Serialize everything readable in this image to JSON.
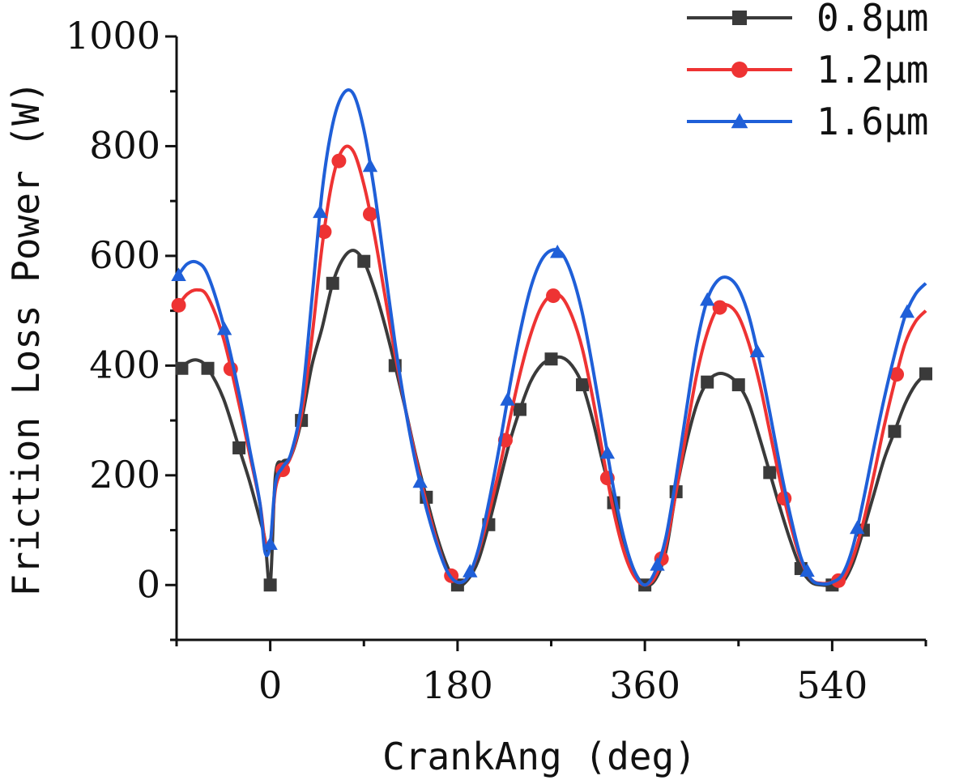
{
  "chart_data": {
    "type": "line",
    "xlabel": "CrankAng (deg)",
    "ylabel": "Friction Loss Power (W)",
    "xlim": [
      -90,
      630
    ],
    "ylim": [
      -100,
      1000
    ],
    "x_ticks": [
      0,
      180,
      360,
      540
    ],
    "y_ticks": [
      0,
      200,
      400,
      600,
      800,
      1000
    ],
    "grid": false,
    "legend_position": "top-right",
    "series": [
      {
        "name": "0.8μm",
        "color": "#3a3a3a",
        "marker": "square",
        "points": [
          [
            -90,
            385
          ],
          [
            -80,
            405
          ],
          [
            -70,
            410
          ],
          [
            -60,
            395
          ],
          [
            -45,
            340
          ],
          [
            -30,
            250
          ],
          [
            -20,
            190
          ],
          [
            -10,
            120
          ],
          [
            -5,
            82
          ],
          [
            0,
            0
          ],
          [
            5,
            200
          ],
          [
            12,
            225
          ],
          [
            20,
            235
          ],
          [
            30,
            300
          ],
          [
            40,
            400
          ],
          [
            50,
            470
          ],
          [
            60,
            550
          ],
          [
            70,
            595
          ],
          [
            80,
            610
          ],
          [
            90,
            590
          ],
          [
            100,
            540
          ],
          [
            110,
            475
          ],
          [
            120,
            400
          ],
          [
            130,
            320
          ],
          [
            140,
            235
          ],
          [
            150,
            160
          ],
          [
            160,
            90
          ],
          [
            170,
            35
          ],
          [
            180,
            0
          ],
          [
            190,
            10
          ],
          [
            200,
            45
          ],
          [
            210,
            110
          ],
          [
            220,
            185
          ],
          [
            230,
            260
          ],
          [
            240,
            320
          ],
          [
            250,
            370
          ],
          [
            260,
            400
          ],
          [
            270,
            412
          ],
          [
            280,
            415
          ],
          [
            290,
            400
          ],
          [
            300,
            365
          ],
          [
            310,
            300
          ],
          [
            320,
            220
          ],
          [
            330,
            150
          ],
          [
            340,
            80
          ],
          [
            350,
            25
          ],
          [
            360,
            0
          ],
          [
            370,
            10
          ],
          [
            380,
            60
          ],
          [
            390,
            170
          ],
          [
            400,
            260
          ],
          [
            410,
            330
          ],
          [
            420,
            370
          ],
          [
            430,
            385
          ],
          [
            440,
            382
          ],
          [
            450,
            365
          ],
          [
            460,
            330
          ],
          [
            470,
            270
          ],
          [
            480,
            205
          ],
          [
            490,
            140
          ],
          [
            500,
            80
          ],
          [
            510,
            30
          ],
          [
            520,
            5
          ],
          [
            530,
            0
          ],
          [
            540,
            0
          ],
          [
            550,
            5
          ],
          [
            560,
            40
          ],
          [
            570,
            100
          ],
          [
            580,
            165
          ],
          [
            590,
            230
          ],
          [
            600,
            280
          ],
          [
            610,
            330
          ],
          [
            620,
            365
          ],
          [
            630,
            385
          ]
        ],
        "marker_x": [
          -85,
          -60,
          -30,
          0,
          30,
          60,
          90,
          120,
          150,
          180,
          210,
          240,
          270,
          300,
          330,
          360,
          390,
          420,
          450,
          480,
          510,
          540,
          570,
          600,
          630
        ]
      },
      {
        "name": "1.2μm",
        "color": "#ee3333",
        "marker": "circle",
        "points": [
          [
            -90,
            505
          ],
          [
            -80,
            530
          ],
          [
            -70,
            538
          ],
          [
            -60,
            525
          ],
          [
            -45,
            450
          ],
          [
            -30,
            330
          ],
          [
            -20,
            240
          ],
          [
            -10,
            150
          ],
          [
            -5,
            80
          ],
          [
            0,
            75
          ],
          [
            5,
            175
          ],
          [
            12,
            210
          ],
          [
            20,
            235
          ],
          [
            30,
            310
          ],
          [
            40,
            450
          ],
          [
            50,
            620
          ],
          [
            60,
            740
          ],
          [
            70,
            795
          ],
          [
            80,
            790
          ],
          [
            90,
            730
          ],
          [
            100,
            640
          ],
          [
            110,
            530
          ],
          [
            120,
            420
          ],
          [
            130,
            320
          ],
          [
            140,
            230
          ],
          [
            150,
            150
          ],
          [
            160,
            80
          ],
          [
            170,
            25
          ],
          [
            180,
            5
          ],
          [
            190,
            15
          ],
          [
            200,
            60
          ],
          [
            210,
            130
          ],
          [
            220,
            210
          ],
          [
            230,
            300
          ],
          [
            240,
            385
          ],
          [
            250,
            455
          ],
          [
            260,
            505
          ],
          [
            270,
            528
          ],
          [
            280,
            525
          ],
          [
            290,
            490
          ],
          [
            300,
            430
          ],
          [
            310,
            340
          ],
          [
            320,
            235
          ],
          [
            330,
            135
          ],
          [
            340,
            60
          ],
          [
            350,
            15
          ],
          [
            360,
            0
          ],
          [
            370,
            15
          ],
          [
            380,
            70
          ],
          [
            390,
            170
          ],
          [
            400,
            280
          ],
          [
            410,
            385
          ],
          [
            420,
            460
          ],
          [
            430,
            505
          ],
          [
            440,
            510
          ],
          [
            450,
            490
          ],
          [
            460,
            440
          ],
          [
            470,
            370
          ],
          [
            480,
            280
          ],
          [
            490,
            190
          ],
          [
            500,
            110
          ],
          [
            510,
            45
          ],
          [
            520,
            10
          ],
          [
            530,
            3
          ],
          [
            540,
            5
          ],
          [
            550,
            10
          ],
          [
            560,
            50
          ],
          [
            570,
            115
          ],
          [
            580,
            200
          ],
          [
            590,
            290
          ],
          [
            600,
            370
          ],
          [
            610,
            440
          ],
          [
            620,
            480
          ],
          [
            630,
            500
          ]
        ],
        "marker_x": [
          -88,
          -38,
          12,
          52,
          66,
          96,
          174,
          226,
          272,
          324,
          376,
          432,
          494,
          546,
          602
        ]
      },
      {
        "name": "1.6μm",
        "color": "#1f5fd8",
        "marker": "triangle",
        "points": [
          [
            -90,
            560
          ],
          [
            -80,
            585
          ],
          [
            -70,
            588
          ],
          [
            -60,
            565
          ],
          [
            -45,
            475
          ],
          [
            -30,
            350
          ],
          [
            -20,
            250
          ],
          [
            -10,
            150
          ],
          [
            -5,
            60
          ],
          [
            0,
            75
          ],
          [
            5,
            185
          ],
          [
            12,
            215
          ],
          [
            20,
            240
          ],
          [
            30,
            330
          ],
          [
            40,
            520
          ],
          [
            50,
            720
          ],
          [
            60,
            840
          ],
          [
            70,
            895
          ],
          [
            80,
            895
          ],
          [
            90,
            830
          ],
          [
            100,
            720
          ],
          [
            110,
            580
          ],
          [
            120,
            440
          ],
          [
            130,
            320
          ],
          [
            140,
            220
          ],
          [
            150,
            140
          ],
          [
            160,
            75
          ],
          [
            170,
            25
          ],
          [
            180,
            5
          ],
          [
            190,
            15
          ],
          [
            200,
            65
          ],
          [
            210,
            150
          ],
          [
            220,
            250
          ],
          [
            230,
            360
          ],
          [
            240,
            460
          ],
          [
            250,
            540
          ],
          [
            260,
            590
          ],
          [
            270,
            610
          ],
          [
            280,
            605
          ],
          [
            290,
            565
          ],
          [
            300,
            495
          ],
          [
            310,
            395
          ],
          [
            320,
            285
          ],
          [
            330,
            175
          ],
          [
            340,
            85
          ],
          [
            350,
            25
          ],
          [
            360,
            0
          ],
          [
            370,
            25
          ],
          [
            380,
            85
          ],
          [
            390,
            195
          ],
          [
            400,
            320
          ],
          [
            410,
            440
          ],
          [
            420,
            520
          ],
          [
            430,
            555
          ],
          [
            440,
            560
          ],
          [
            450,
            540
          ],
          [
            460,
            490
          ],
          [
            470,
            410
          ],
          [
            480,
            315
          ],
          [
            490,
            215
          ],
          [
            500,
            125
          ],
          [
            510,
            50
          ],
          [
            520,
            10
          ],
          [
            530,
            2
          ],
          [
            540,
            5
          ],
          [
            550,
            20
          ],
          [
            560,
            70
          ],
          [
            570,
            155
          ],
          [
            580,
            250
          ],
          [
            590,
            340
          ],
          [
            600,
            420
          ],
          [
            610,
            490
          ],
          [
            620,
            530
          ],
          [
            630,
            550
          ]
        ],
        "marker_x": [
          -88,
          -44,
          0,
          48,
          96,
          144,
          192,
          228,
          276,
          324,
          372,
          420,
          468,
          516,
          564,
          612
        ]
      }
    ]
  }
}
